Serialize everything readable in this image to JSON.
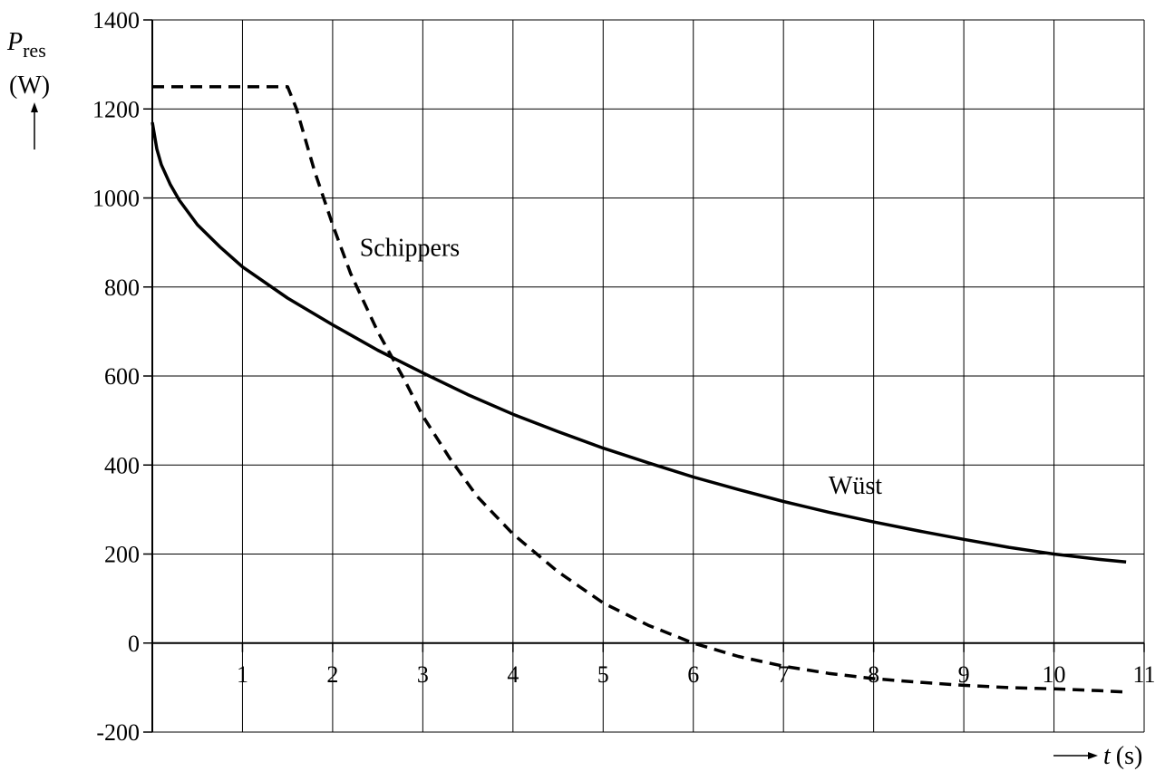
{
  "chart_data": {
    "type": "line",
    "title": "",
    "xlabel": {
      "symbol": "t",
      "unit": "(s)"
    },
    "ylabel": {
      "symbol": "P",
      "subscript": "res",
      "unit": "(W)"
    },
    "xlim": [
      0,
      11
    ],
    "ylim": [
      -200,
      1400
    ],
    "x_ticks": [
      1,
      2,
      3,
      4,
      5,
      6,
      7,
      8,
      9,
      10,
      11
    ],
    "y_ticks": [
      -200,
      0,
      200,
      400,
      600,
      800,
      1000,
      1200,
      1400
    ],
    "grid": true,
    "series": [
      {
        "name": "Wüst",
        "style": "solid",
        "color": "#000000",
        "x": [
          0.0,
          0.05,
          0.1,
          0.2,
          0.3,
          0.5,
          0.75,
          1.0,
          1.5,
          2.0,
          2.5,
          3.0,
          3.5,
          4.0,
          4.5,
          5.0,
          5.5,
          6.0,
          6.5,
          7.0,
          7.5,
          8.0,
          8.5,
          9.0,
          9.5,
          10.0,
          10.5,
          10.8
        ],
        "y": [
          1170,
          1110,
          1075,
          1030,
          995,
          940,
          890,
          845,
          775,
          715,
          658,
          607,
          558,
          514,
          475,
          438,
          405,
          373,
          345,
          318,
          294,
          272,
          252,
          233,
          215,
          200,
          188,
          182
        ]
      },
      {
        "name": "Schippers",
        "style": "dashed",
        "color": "#000000",
        "x": [
          0.0,
          1.5,
          1.6,
          1.8,
          2.0,
          2.2,
          2.5,
          2.8,
          3.0,
          3.3,
          3.6,
          4.0,
          4.5,
          5.0,
          5.5,
          6.0,
          6.5,
          7.0,
          7.5,
          8.0,
          8.5,
          9.0,
          9.5,
          10.0,
          10.5,
          10.8
        ],
        "y": [
          1250,
          1250,
          1200,
          1060,
          940,
          830,
          700,
          590,
          510,
          415,
          330,
          245,
          160,
          90,
          40,
          0,
          -30,
          -52,
          -68,
          -80,
          -88,
          -95,
          -100,
          -103,
          -107,
          -110
        ]
      }
    ],
    "annotations": [
      {
        "text": "Schippers",
        "x": 2.3,
        "y": 870
      },
      {
        "text": "Wüst",
        "x": 7.5,
        "y": 335
      }
    ]
  }
}
